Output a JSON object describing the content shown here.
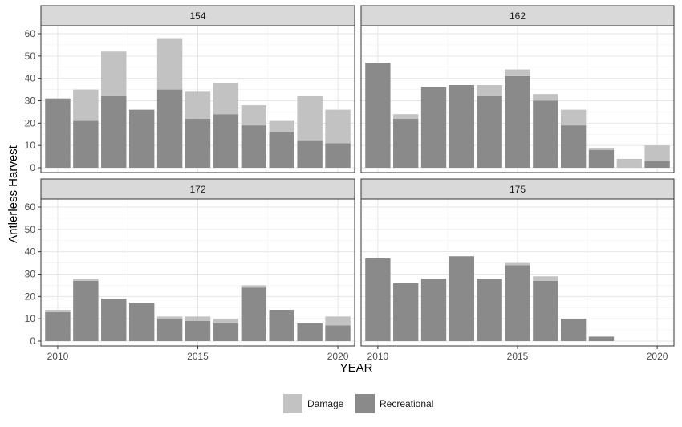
{
  "chart_data": {
    "type": "bar",
    "stacked": true,
    "xlabel": "YEAR",
    "ylabel": "Antlerless Harvest",
    "x_ticks": [
      2010,
      2015,
      2020
    ],
    "y_ticks": [
      0,
      10,
      20,
      30,
      40,
      50,
      60
    ],
    "xlim": [
      2009.4,
      2020.6
    ],
    "ylim": [
      0,
      60
    ],
    "grid": true,
    "legend_position": "bottom",
    "series_order": [
      "Damage",
      "Recreational"
    ],
    "colors": {
      "Damage": "#c2c2c2",
      "Recreational": "#8a8a8a"
    },
    "legend": [
      "Damage",
      "Recreational"
    ],
    "panels": [
      {
        "name": "154",
        "years": [
          2010,
          2011,
          2012,
          2013,
          2014,
          2015,
          2016,
          2017,
          2018,
          2019,
          2020
        ],
        "series": [
          {
            "name": "Recreational",
            "values": [
              31,
              21,
              32,
              26,
              35,
              22,
              24,
              19,
              16,
              12,
              11
            ]
          },
          {
            "name": "Damage",
            "values": [
              0,
              14,
              20,
              0,
              23,
              12,
              14,
              9,
              5,
              20,
              15
            ]
          }
        ]
      },
      {
        "name": "162",
        "years": [
          2010,
          2011,
          2012,
          2013,
          2014,
          2015,
          2016,
          2017,
          2018,
          2019,
          2020
        ],
        "series": [
          {
            "name": "Recreational",
            "values": [
              47,
              22,
              36,
              37,
              32,
              41,
              30,
              19,
              8,
              0,
              3
            ]
          },
          {
            "name": "Damage",
            "values": [
              0,
              2,
              0,
              0,
              5,
              3,
              3,
              7,
              1,
              4,
              7
            ]
          }
        ]
      },
      {
        "name": "172",
        "years": [
          2010,
          2011,
          2012,
          2013,
          2014,
          2015,
          2016,
          2017,
          2018,
          2019,
          2020
        ],
        "series": [
          {
            "name": "Recreational",
            "values": [
              13,
              27,
              19,
              17,
              10,
              9,
              8,
              24,
              14,
              8,
              7
            ]
          },
          {
            "name": "Damage",
            "values": [
              1,
              1,
              0,
              0,
              1,
              2,
              2,
              1,
              0,
              0,
              4
            ]
          }
        ]
      },
      {
        "name": "175",
        "years": [
          2010,
          2011,
          2012,
          2013,
          2014,
          2015,
          2016,
          2017,
          2018,
          2019,
          2020
        ],
        "series": [
          {
            "name": "Recreational",
            "values": [
              37,
              26,
              28,
              38,
              28,
              34,
              27,
              10,
              2,
              0,
              0
            ]
          },
          {
            "name": "Damage",
            "values": [
              0,
              0,
              0,
              0,
              0,
              1,
              2,
              0,
              0,
              0,
              0
            ]
          }
        ]
      }
    ]
  }
}
